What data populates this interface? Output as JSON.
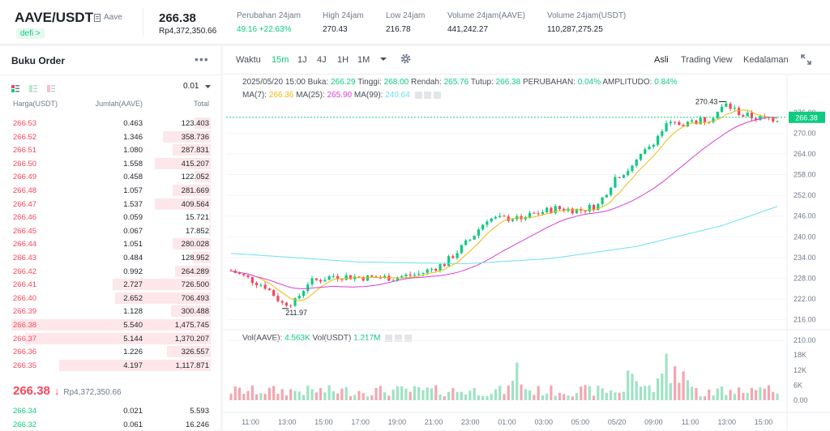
{
  "header": {
    "pair": "AAVE/USDT",
    "name": "Aave",
    "tag": "defi >",
    "last_price": "266.38",
    "last_price_fiat": "Rp4,372,350.66",
    "stats": [
      {
        "label": "Perubahan 24jam",
        "value": "49.16 +22.63%",
        "color": "#0ecb81"
      },
      {
        "label": "High 24jam",
        "value": "270.43",
        "color": "#1e2329"
      },
      {
        "label": "Low 24jam",
        "value": "216.78",
        "color": "#1e2329"
      },
      {
        "label": "Volume 24jam(AAVE)",
        "value": "441,242.27",
        "color": "#1e2329"
      },
      {
        "label": "Volume 24jam(USDT)",
        "value": "110,287,275.25",
        "color": "#1e2329"
      }
    ]
  },
  "orderbook": {
    "title": "Buku Order",
    "more": "•••",
    "precision": "0.01",
    "columns": [
      "Harga(USDT)",
      "Jumlah(AAVE)",
      "Total"
    ],
    "asks": [
      {
        "price": "266.53",
        "amount": "0.463",
        "total": "123.403",
        "depth": 0.08
      },
      {
        "price": "266.52",
        "amount": "1.346",
        "total": "358.736",
        "depth": 0.24
      },
      {
        "price": "266.51",
        "amount": "1.080",
        "total": "287.831",
        "depth": 0.19
      },
      {
        "price": "266.50",
        "amount": "1.558",
        "total": "415.207",
        "depth": 0.28
      },
      {
        "price": "266.49",
        "amount": "0.458",
        "total": "122.052",
        "depth": 0.08
      },
      {
        "price": "266.48",
        "amount": "1.057",
        "total": "281.669",
        "depth": 0.19
      },
      {
        "price": "266.47",
        "amount": "1.537",
        "total": "409.564",
        "depth": 0.28
      },
      {
        "price": "266.46",
        "amount": "0.059",
        "total": "15.721",
        "depth": 0.01
      },
      {
        "price": "266.45",
        "amount": "0.067",
        "total": "17.852",
        "depth": 0.01
      },
      {
        "price": "266.44",
        "amount": "1.051",
        "total": "280.028",
        "depth": 0.19
      },
      {
        "price": "266.43",
        "amount": "0.484",
        "total": "128.952",
        "depth": 0.09
      },
      {
        "price": "266.42",
        "amount": "0.992",
        "total": "264.289",
        "depth": 0.18
      },
      {
        "price": "266.41",
        "amount": "2.727",
        "total": "726.500",
        "depth": 0.49
      },
      {
        "price": "266.40",
        "amount": "2.652",
        "total": "706.493",
        "depth": 0.48
      },
      {
        "price": "266.39",
        "amount": "1.128",
        "total": "300.488",
        "depth": 0.2
      },
      {
        "price": "266.38",
        "amount": "5.540",
        "total": "1,475.745",
        "depth": 1.0
      },
      {
        "price": "266.37",
        "amount": "5.144",
        "total": "1,370.207",
        "depth": 0.93
      },
      {
        "price": "266.36",
        "amount": "1.226",
        "total": "326.557",
        "depth": 0.22
      },
      {
        "price": "266.35",
        "amount": "4.197",
        "total": "1,117.871",
        "depth": 0.76
      }
    ],
    "mid_price": "266.38",
    "mid_arrow": "↓",
    "mid_fiat": "Rp4,372,350.66",
    "bids": [
      {
        "price": "266.34",
        "amount": "0.021",
        "total": "5.593"
      },
      {
        "price": "266.32",
        "amount": "0.061",
        "total": "16.246"
      }
    ]
  },
  "toolbar": {
    "intervals": [
      "Waktu",
      "15m",
      "1J",
      "4J",
      "1H",
      "1M"
    ],
    "active_interval": "15m",
    "views": [
      "Asli",
      "Trading View",
      "Kedalaman"
    ],
    "active_view": "Asli"
  },
  "ohlc_info": {
    "date": "2025/05/20 15:00",
    "buka_label": "Buka:",
    "buka": "266.29",
    "tinggi_label": "Tinggi:",
    "tinggi": "268.00",
    "rendah_label": "Rendah:",
    "rendah": "265.76",
    "tutup_label": "Tutup:",
    "tutup": "266.38",
    "perubahan_label": "PERUBAHAN:",
    "perubahan": "0.04%",
    "amplitudo_label": "AMPLITUDO:",
    "amplitudo": "0.84%"
  },
  "ma_info": {
    "ma7_label": "MA(7):",
    "ma7": "266.36",
    "ma25_label": "MA(25):",
    "ma25": "265.90",
    "ma99_label": "MA(99):",
    "ma99": "240.64",
    "colors": {
      "ma7": "#f0b90b",
      "ma25": "#d63fd6",
      "ma99": "#6ee0f0"
    }
  },
  "vol_info": {
    "vol_aave_label": "Vol(AAVE):",
    "vol_aave": "4.563K",
    "vol_usdt_label": "Vol(USDT)",
    "vol_usdt": "1.217M"
  },
  "chart_data": {
    "type": "candlestick",
    "y_ticks": [
      "276.00",
      "270.00",
      "264.00",
      "258.00",
      "252.00",
      "246.00",
      "240.00",
      "234.00",
      "228.00",
      "222.00",
      "216.00",
      "210.00"
    ],
    "ylim": [
      207,
      279
    ],
    "vol_ticks": [
      "18K",
      "12K",
      "6K",
      "0.00"
    ],
    "vol_lim": [
      0,
      20000
    ],
    "x_ticks": [
      "11:00",
      "13:00",
      "15:00",
      "17:00",
      "19:00",
      "21:00",
      "23:00",
      "01:00",
      "03:00",
      "05:00",
      "05/20",
      "09:00",
      "11:00",
      "13:00",
      "15:00"
    ],
    "high_label": "270.43",
    "low_label": "211.97",
    "current_price": "266.38",
    "anchors": [
      [
        0,
        222
      ],
      [
        8,
        217.5
      ],
      [
        12,
        212.5
      ],
      [
        15,
        213
      ],
      [
        18,
        218.5
      ],
      [
        24,
        220.5
      ],
      [
        32,
        220
      ],
      [
        38,
        220
      ],
      [
        44,
        221
      ],
      [
        50,
        224
      ],
      [
        56,
        231
      ],
      [
        60,
        237
      ],
      [
        64,
        237
      ],
      [
        70,
        238
      ],
      [
        76,
        240
      ],
      [
        82,
        239.5
      ],
      [
        86,
        241
      ],
      [
        90,
        249
      ],
      [
        94,
        252
      ],
      [
        98,
        258
      ],
      [
        102,
        264
      ],
      [
        108,
        265
      ],
      [
        112,
        266
      ],
      [
        116,
        270
      ],
      [
        120,
        267
      ],
      [
        124,
        266
      ],
      [
        128,
        266
      ]
    ],
    "ma99_anchors": [
      [
        0,
        227
      ],
      [
        30,
        224.5
      ],
      [
        55,
        224
      ],
      [
        75,
        225.5
      ],
      [
        95,
        229
      ],
      [
        115,
        235
      ],
      [
        128,
        240.6
      ]
    ]
  }
}
